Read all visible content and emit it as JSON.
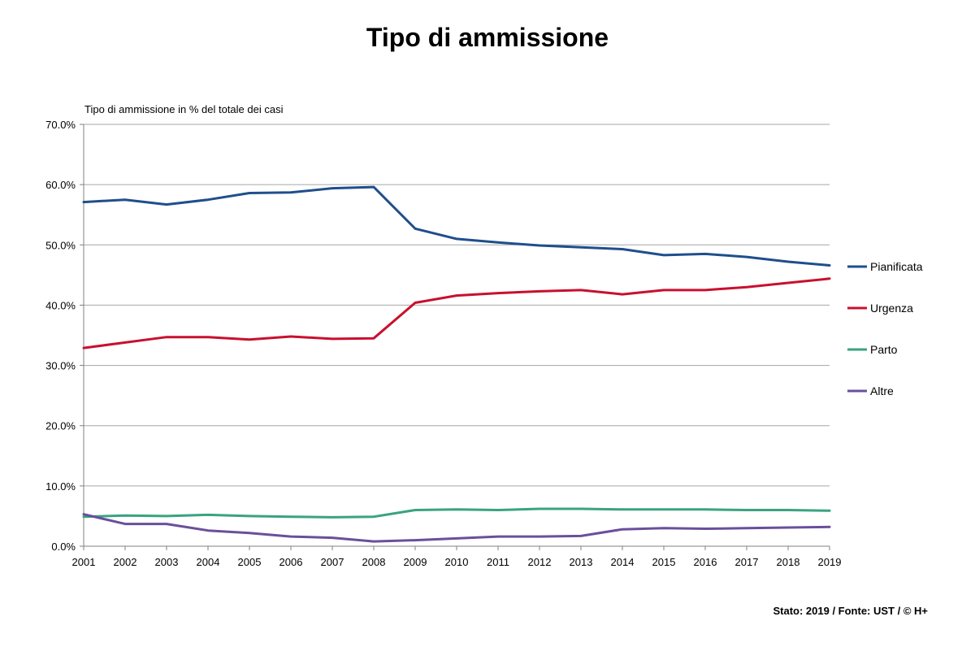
{
  "footer": "Stato: 2019 / Fonte: UST / © H+",
  "chart_data": {
    "type": "line",
    "title": "Tipo di ammissione",
    "ylabel": "Tipo di ammissione in % del totale dei casi",
    "xlabel": "",
    "ylim": [
      0,
      70
    ],
    "ytick_step": 10,
    "grid": true,
    "legend_position": "right",
    "x": [
      "2001",
      "2002",
      "2003",
      "2004",
      "2005",
      "2006",
      "2007",
      "2008",
      "2009",
      "2010",
      "2011",
      "2012",
      "2013",
      "2014",
      "2015",
      "2016",
      "2017",
      "2018",
      "2019"
    ],
    "ytick_labels": [
      "0.0%",
      "10.0%",
      "20.0%",
      "30.0%",
      "40.0%",
      "50.0%",
      "60.0%",
      "70.0%"
    ],
    "series": [
      {
        "name": "Pianificata",
        "color": "#1f4e8c",
        "values": [
          57.1,
          57.5,
          56.7,
          57.5,
          58.6,
          58.7,
          59.4,
          59.6,
          52.7,
          51.0,
          50.4,
          49.9,
          49.6,
          49.3,
          48.3,
          48.5,
          48.0,
          47.2,
          46.6
        ]
      },
      {
        "name": "Urgenza",
        "color": "#c8102e",
        "values": [
          32.9,
          33.8,
          34.7,
          34.7,
          34.3,
          34.8,
          34.4,
          34.5,
          40.4,
          41.6,
          42.0,
          42.3,
          42.5,
          41.8,
          42.5,
          42.5,
          43.0,
          43.7,
          44.4
        ]
      },
      {
        "name": "Parto",
        "color": "#3aa37f",
        "values": [
          4.9,
          5.1,
          5.0,
          5.2,
          5.0,
          4.9,
          4.8,
          4.9,
          6.0,
          6.1,
          6.0,
          6.2,
          6.2,
          6.1,
          6.1,
          6.1,
          6.0,
          6.0,
          5.9
        ]
      },
      {
        "name": "Altre",
        "color": "#6a4f9c",
        "values": [
          5.3,
          3.7,
          3.7,
          2.6,
          2.2,
          1.6,
          1.4,
          0.8,
          1.0,
          1.3,
          1.6,
          1.6,
          1.7,
          2.8,
          3.0,
          2.9,
          3.0,
          3.1,
          3.2
        ]
      }
    ]
  }
}
